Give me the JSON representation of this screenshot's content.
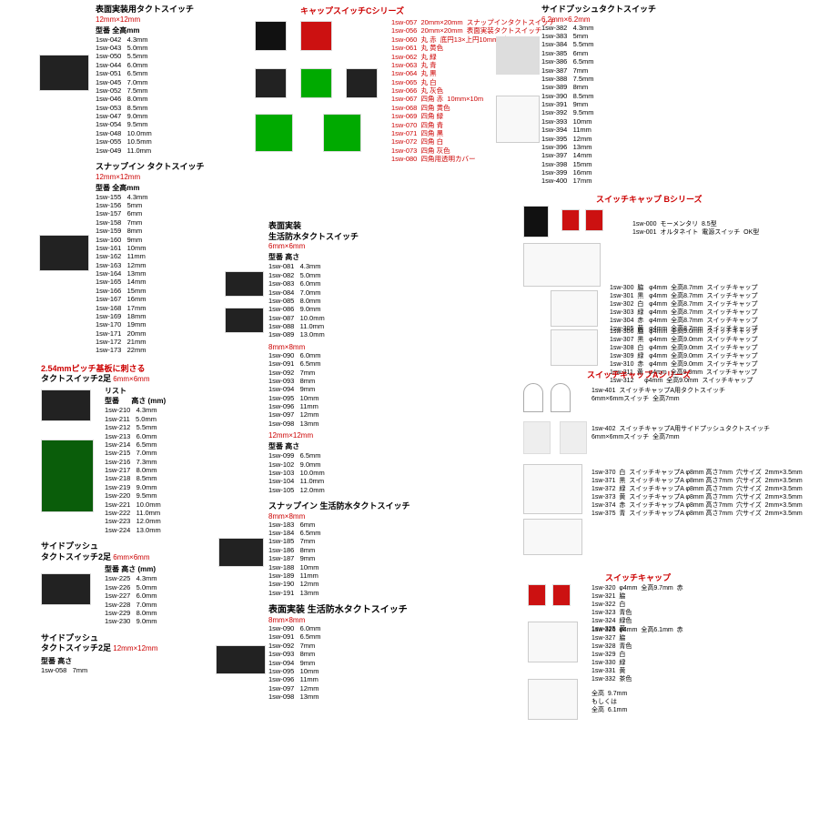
{
  "col1": {
    "s1": {
      "title": "表面実装用タクトスイッチ",
      "size": "12mm×12mm",
      "hdr": "型番      全高mm",
      "rows": [
        "1sw-042   4.3mm",
        "1sw-043   5.0mm",
        "1sw-050   5.5mm",
        "1sw-044   6.0mm",
        "1sw-051   6.5mm",
        "1sw-045   7.0mm",
        "1sw-052   7.5mm",
        "1sw-046   8.0mm",
        "1sw-053   8.5mm",
        "1sw-047   9.0mm",
        "1sw-054   9.5mm",
        "1sw-048   10.0mm",
        "1sw-055   10.5mm",
        "1sw-049   11.0mm"
      ]
    },
    "s2": {
      "title": "スナップイン  タクトスイッチ",
      "size": "12mm×12mm",
      "hdr": "型番      全高mm",
      "rows": [
        "1sw-155   4.3mm",
        "1sw-156   5mm",
        "1sw-157   6mm",
        "1sw-158   7mm",
        "1sw-159   8mm",
        "1sw-160   9mm",
        "1sw-161   10mm",
        "1sw-162   11mm",
        "1sw-163   12mm",
        "1sw-164   13mm",
        "1sw-165   14mm",
        "1sw-166   15mm",
        "1sw-167   16mm",
        "1sw-168   17mm",
        "1sw-169   18mm",
        "1sw-170   19mm",
        "1sw-171   20mm",
        "1sw-172   21mm",
        "1sw-173   22mm"
      ]
    },
    "s3": {
      "title1": "2.54mmピッチ基板に刺さる",
      "title2": "タクトスイッチ2足",
      "size": "6mm×6mm",
      "hdr": "リスト\n型番      高さ (mm)",
      "rows": [
        "1sw-210   4.3mm",
        "1sw-211   5.0mm",
        "1sw-212   5.5mm",
        "1sw-213   6.0mm",
        "1sw-214   6.5mm",
        "1sw-215   7.0mm",
        "1sw-216   7.3mm",
        "1sw-217   8.0mm",
        "1sw-218   8.5mm",
        "1sw-219   9.0mm",
        "1sw-220   9.5mm",
        "1sw-221   10.0mm",
        "1sw-222   11.0mm",
        "1sw-223   12.0mm",
        "1sw-224   13.0mm"
      ]
    },
    "s4": {
      "title": "サイドプッシュ\nタクトスイッチ2足",
      "size": "6mm×6mm",
      "hdr": "型番      高さ (mm)",
      "rows": [
        "1sw-225   4.3mm",
        "1sw-226   5.0mm",
        "1sw-227   6.0mm",
        "1sw-228   7.0mm",
        "1sw-229   8.0mm",
        "1sw-230   9.0mm"
      ]
    },
    "s5": {
      "title": "サイドプッシュ\nタクトスイッチ2足",
      "size": "12mm×12mm",
      "hdr": "型番      高さ",
      "rows": [
        "1sw-058   7mm"
      ]
    }
  },
  "col2": {
    "cap": {
      "title": "キャップスイッチCシリーズ",
      "rows": [
        "1sw-057  20mm×20mm  スナップインタクトスイッチ",
        "1sw-056  20mm×20mm  表面実装タクトスイッチ",
        "",
        "1sw-060  丸 赤  底円13×上円10mm×高さ7mm",
        "1sw-061  丸 黄色",
        "1sw-062  丸 緑",
        "1sw-063  丸 青",
        "1sw-064  丸 黒",
        "1sw-065  丸 白",
        "1sw-066  丸 灰色",
        "1sw-067  四角 赤  10mm×10m",
        "1sw-068  四角 黄色",
        "1sw-069  四角 緑",
        "1sw-070  四角 青",
        "1sw-071  四角 黒",
        "1sw-072  四角 白",
        "1sw-073  四角 灰色",
        "1sw-080  四角用透明カバー"
      ]
    },
    "s6": {
      "title": "表面実装\n生活防水タクトスイッチ",
      "size1": "6mm×6mm",
      "hdr1": "型番      高さ",
      "rows1": [
        "1sw-081   4.3mm",
        "1sw-082   5.0mm",
        "1sw-083   6.0mm",
        "1sw-084   7.0mm",
        "1sw-085   8.0mm",
        "1sw-086   9.0mm",
        "1sw-087   10.0mm",
        "1sw-088   11.0mm",
        "1sw-089   13.0mm"
      ],
      "size2": "8mm×8mm",
      "rows2": [
        "1sw-090   6.0mm",
        "1sw-091   6.5mm",
        "1sw-092   7mm",
        "1sw-093   8mm",
        "1sw-094   9mm",
        "1sw-095   10mm",
        "1sw-096   11mm",
        "1sw-097   12mm",
        "1sw-098   13mm"
      ],
      "size3": "12mm×12mm",
      "hdr3": "型番      高さ",
      "rows3": [
        "1sw-099   6.5mm",
        "1sw-102   9.0mm",
        "1sw-103   10.0mm",
        "1sw-104   11.0mm",
        "1sw-105   12.0mm"
      ]
    },
    "s7": {
      "title": "スナップイン   生活防水タクトスイッチ",
      "size": "8mm×8mm",
      "rows": [
        "1sw-183   6mm",
        "1sw-184   6.5mm",
        "1sw-185   7mm",
        "1sw-186   8mm",
        "1sw-187   9mm",
        "1sw-188   10mm",
        "1sw-189   11mm",
        "1sw-190   12mm",
        "1sw-191   13mm"
      ]
    },
    "s8": {
      "title": "表面実装   生活防水タクトスイッチ",
      "size": "8mm×8mm",
      "rows": [
        "1sw-090   6.0mm",
        "1sw-091   6.5mm",
        "1sw-092   7mm",
        "1sw-093   8mm",
        "1sw-094   9mm",
        "1sw-095   10mm",
        "1sw-096   11mm",
        "1sw-097   12mm",
        "1sw-098   13mm"
      ]
    }
  },
  "col3": {
    "s9": {
      "title": "サイドプッシュタクトスイッチ",
      "size": "6.2mm×6.2mm",
      "rows": [
        "1sw-382   4.3mm",
        "1sw-383   5mm",
        "1sw-384   5.5mm",
        "1sw-385   6mm",
        "1sw-386   6.5mm",
        "1sw-387   7mm",
        "1sw-388   7.5mm",
        "1sw-389   8mm",
        "1sw-390   8.5mm",
        "1sw-391   9mm",
        "1sw-392   9.5mm",
        "1sw-393   10mm",
        "1sw-394   11mm",
        "1sw-395   12mm",
        "1sw-396   13mm",
        "1sw-397   14mm",
        "1sw-398   15mm",
        "1sw-399   16mm",
        "1sw-400   17mm"
      ]
    },
    "s10": {
      "title": "スイッチキャップ  Bシリーズ",
      "n1": [
        "1sw-000  モーメンタリ  8.5型",
        "1sw-001  オルタネイト  電源スイッチ  OK型"
      ],
      "n2": [
        "1sw-300  脇   φ4mm  全高8.7mm  スイッチキャップ",
        "1sw-301  黒   φ4mm  全高8.7mm  スイッチキャップ",
        "1sw-302  白   φ4mm  全高8.7mm  スイッチキャップ",
        "1sw-303  緑   φ4mm  全高8.7mm  スイッチキャップ",
        "1sw-304  赤   φ4mm  全高8.7mm  スイッチキャップ",
        "1sw-305  黄   φ4mm  全高8.7mm  スイッチキャップ"
      ],
      "n3": [
        "1sw-306  脇   φ4mm  全高9.0mm  スイッチキャップ",
        "1sw-307  黒   φ4mm  全高9.0mm  スイッチキャップ",
        "1sw-308  白   φ4mm  全高9.0mm  スイッチキャップ",
        "1sw-309  緑   φ4mm  全高9.0mm  スイッチキャップ",
        "1sw-310  赤   φ4mm  全高9.0mm  スイッチキャップ",
        "1sw-311  黄   φ4mm  全高9.0mm  スイッチキャップ",
        "1sw-312      φ4mm  全高9.0mm  スイッチキャップ"
      ]
    },
    "s11": {
      "title": "スイッチキャップAシリーズ",
      "n1": "1sw-401  スイッチキャップA用タクトスイッチ\n6mm×6mmスイッチ  全高7mm",
      "n2": "1sw-402  スイッチキャップA用サイドプッシュタクトスイッチ\n6mm×6mmスイッチ  全高7mm",
      "n3": [
        "1sw-370  白  スイッチキャップA φ8mm 高さ7mm  穴サイズ  2mm×3.5mm",
        "1sw-371  黒  スイッチキャップA φ8mm 高さ7mm  穴サイズ  2mm×3.5mm",
        "1sw-372  緑  スイッチキャップA φ8mm 高さ7mm  穴サイズ  2mm×3.5mm",
        "1sw-373  黄  スイッチキャップA φ8mm 高さ7mm  穴サイズ  2mm×3.5mm",
        "1sw-374  赤  スイッチキャップA φ8mm 高さ7mm  穴サイズ  2mm×3.5mm",
        "1sw-375  青  スイッチキャップA φ8mm 高さ7mm  穴サイズ  2mm×3.5mm"
      ]
    },
    "s12": {
      "title": "スイッチキャップ",
      "n1": [
        "1sw-320  φ4mm  全高9.7mm  赤",
        "1sw-321  脇",
        "1sw-322  白",
        "1sw-323  青色",
        "1sw-324  緑色",
        "1sw-325  黄"
      ],
      "n2": [
        "1sw-326  φ4mm  全高6.1mm  赤",
        "1sw-327  脇",
        "1sw-328  青色",
        "1sw-329  白",
        "1sw-330  緑",
        "1sw-331  黄",
        "1sw-332  茶色"
      ],
      "n3": "全高  9.7mm\nもしくは\n全高  6.1mm"
    }
  }
}
